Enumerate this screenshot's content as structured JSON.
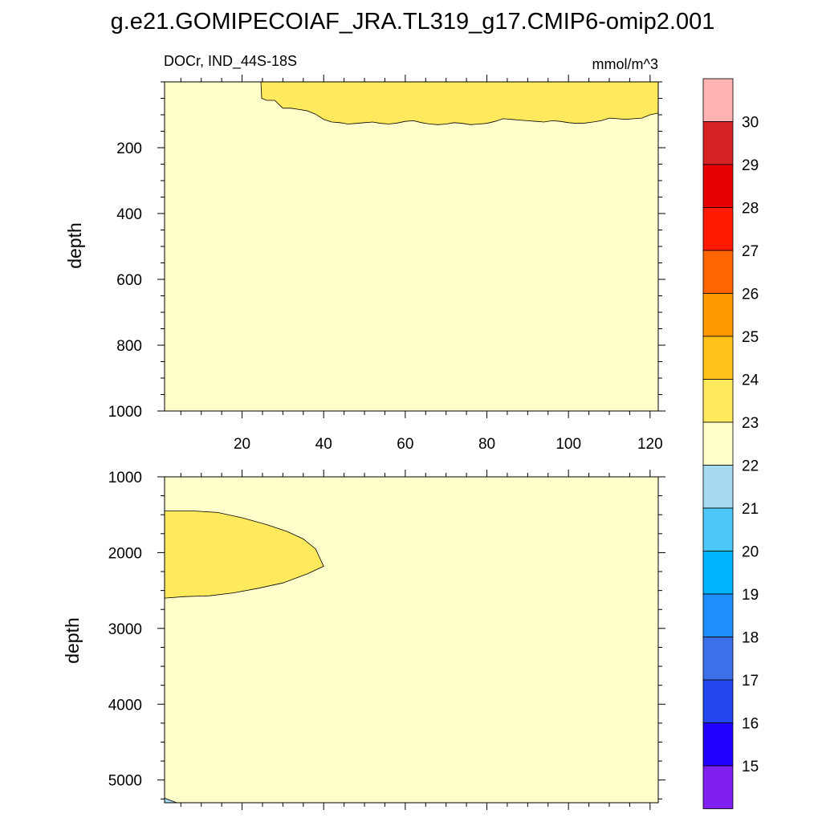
{
  "title": "g.e21.GOMIPECOIAF_JRA.TL319_g17.CMIP6-omip2.001",
  "chart_data": [
    {
      "type": "contour",
      "panel": "upper",
      "left_label": "DOCr, IND_44S-18S",
      "right_label": "mmol/m^3",
      "ylabel": "depth",
      "xlabel": "",
      "xlim": [
        1,
        122
      ],
      "ylim": [
        1000,
        0
      ],
      "xticks": [
        20,
        40,
        60,
        80,
        100,
        120
      ],
      "xtick_labels": [
        "20",
        "40",
        "60",
        "80",
        "100",
        "120"
      ],
      "yticks": [
        200,
        400,
        600,
        800,
        1000
      ],
      "ytick_labels": [
        "200",
        "400",
        "600",
        "800",
        "1000"
      ],
      "background_level": "22-23",
      "regions": [
        {
          "level": "23-24",
          "points": [
            [
              24.6,
              0
            ],
            [
              24.8,
              50
            ],
            [
              26,
              56
            ],
            [
              28,
              56
            ],
            [
              30,
              80
            ],
            [
              32,
              80
            ],
            [
              34,
              84
            ],
            [
              36,
              88
            ],
            [
              38,
              98
            ],
            [
              40,
              114
            ],
            [
              42,
              122
            ],
            [
              44,
              124
            ],
            [
              46,
              128
            ],
            [
              48,
              126
            ],
            [
              50,
              124
            ],
            [
              52,
              122
            ],
            [
              54,
              126
            ],
            [
              56,
              128
            ],
            [
              58,
              125
            ],
            [
              60,
              120
            ],
            [
              62,
              118
            ],
            [
              64,
              124
            ],
            [
              66,
              128
            ],
            [
              68,
              130
            ],
            [
              70,
              128
            ],
            [
              72,
              124
            ],
            [
              74,
              126
            ],
            [
              76,
              130
            ],
            [
              78,
              128
            ],
            [
              80,
              126
            ],
            [
              82,
              120
            ],
            [
              84,
              112
            ],
            [
              86,
              114
            ],
            [
              88,
              116
            ],
            [
              90,
              118
            ],
            [
              92,
              120
            ],
            [
              94,
              122
            ],
            [
              96,
              118
            ],
            [
              98,
              120
            ],
            [
              100,
              124
            ],
            [
              102,
              126
            ],
            [
              104,
              125
            ],
            [
              106,
              122
            ],
            [
              108,
              118
            ],
            [
              110,
              110
            ],
            [
              112,
              112
            ],
            [
              114,
              114
            ],
            [
              116,
              112
            ],
            [
              118,
              110
            ],
            [
              120,
              100
            ],
            [
              122,
              95
            ],
            [
              122,
              0
            ]
          ]
        }
      ]
    },
    {
      "type": "contour",
      "panel": "lower",
      "ylabel": "depth",
      "xlim": [
        1,
        122
      ],
      "ylim": [
        5300,
        1000
      ],
      "yticks": [
        1000,
        2000,
        3000,
        4000,
        5000
      ],
      "ytick_labels": [
        "1000",
        "2000",
        "3000",
        "4000",
        "5000"
      ],
      "background_level": "22-23",
      "regions": [
        {
          "level": "23-24",
          "points": [
            [
              1,
              1450
            ],
            [
              8,
              1450
            ],
            [
              14,
              1470
            ],
            [
              20,
              1540
            ],
            [
              26,
              1630
            ],
            [
              31,
              1720
            ],
            [
              35,
              1820
            ],
            [
              38,
              1950
            ],
            [
              40,
              2180
            ],
            [
              36,
              2280
            ],
            [
              30,
              2400
            ],
            [
              24,
              2470
            ],
            [
              18,
              2530
            ],
            [
              12,
              2570
            ],
            [
              6,
              2580
            ],
            [
              1,
              2600
            ]
          ]
        },
        {
          "level": "21-22",
          "points": [
            [
              1,
              5240
            ],
            [
              4,
              5300
            ],
            [
              1,
              5300
            ]
          ]
        }
      ]
    }
  ],
  "colorbar": {
    "colors": [
      "#ffb3b3",
      "#d62222",
      "#e60000",
      "#ff1a00",
      "#ff6600",
      "#ff9900",
      "#ffc21a",
      "#ffe95c",
      "#ffffcc",
      "#a6d9f2",
      "#4dc7f7",
      "#00b3ff",
      "#1f8fff",
      "#3b70e8",
      "#2448f0",
      "#1f00ff",
      "#7f20f0"
    ],
    "labels": [
      "30",
      "29",
      "28",
      "27",
      "26",
      "25",
      "24",
      "23",
      "22",
      "21",
      "20",
      "19",
      "18",
      "17",
      "16",
      "15"
    ]
  },
  "level_colors": {
    "22-23": "#ffffcc",
    "23-24": "#ffe95c",
    "21-22": "#a6d9f2"
  }
}
